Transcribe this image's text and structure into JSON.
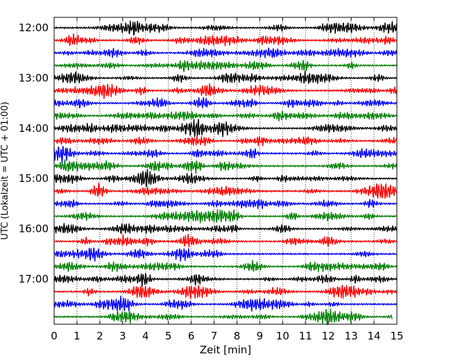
{
  "chart_data": {
    "type": "line",
    "title": "",
    "xlabel": "Zeit  [min]",
    "ylabel": "UTC (Lokalzeit = UTC + 01:00)",
    "xlim": [
      0,
      15
    ],
    "x_ticks": [
      "0",
      "1",
      "2",
      "3",
      "4",
      "5",
      "6",
      "7",
      "8",
      "9",
      "10",
      "11",
      "12",
      "13",
      "14",
      "15"
    ],
    "y_tick_labels": [
      "12:00",
      "13:00",
      "14:00",
      "15:00",
      "16:00",
      "17:00"
    ],
    "grid": "vertical-dotted",
    "trace_interval_minutes": 15,
    "start_time": "12:00",
    "trace_count": 24,
    "trace_colors": [
      "#000000",
      "#ff0000",
      "#0000ff",
      "#007f00"
    ],
    "last_trace_end_min": 14.8
  }
}
